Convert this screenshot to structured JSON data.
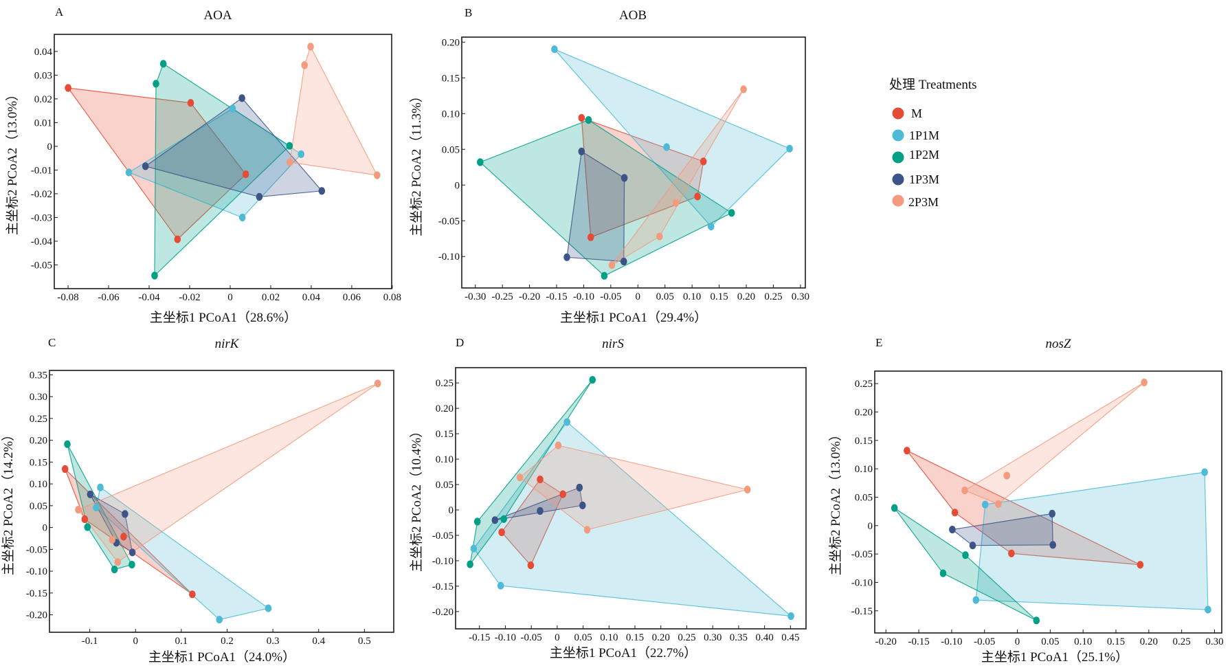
{
  "legend": {
    "title": "处理 Treatments",
    "items": [
      {
        "key": "M",
        "label": "M",
        "color": "#E64B35"
      },
      {
        "key": "1P1M",
        "label": "1P1M",
        "color": "#4DBBD5"
      },
      {
        "key": "1P2M",
        "label": "1P2M",
        "color": "#00A087"
      },
      {
        "key": "1P3M",
        "label": "1P3M",
        "color": "#3C5488"
      },
      {
        "key": "2P3M",
        "label": "2P3M",
        "color": "#F39B7F"
      }
    ]
  },
  "chart_data": [
    {
      "panel": "A",
      "type": "scatter",
      "title": "AOA",
      "title_italic": false,
      "xlabel": "主坐标1 PCoA1（28.6%）",
      "ylabel": "主坐标2 PCoA2（13.0%）",
      "xlim": [
        -0.0868,
        0.0797
      ],
      "ylim": [
        -0.06,
        0.0472
      ],
      "xticks": [
        -0.08,
        -0.06,
        -0.04,
        -0.02,
        0,
        0.02,
        0.04,
        0.06,
        0.08
      ],
      "xticklabels": [
        "-0.08",
        "-0.06",
        "-0.04",
        "-0.02",
        "0",
        "0.02",
        "0.04",
        "0.06",
        "0.08"
      ],
      "yticks": [
        0.04,
        0.03,
        0.02,
        0.01,
        0,
        -0.01,
        -0.02,
        -0.03,
        -0.04,
        -0.05
      ],
      "yticklabels": [
        "0.04",
        "0.03",
        "0.02",
        "0.01",
        "0",
        "-0.01",
        "-0.02",
        "-0.03",
        "-0.04",
        "-0.05"
      ],
      "grid": false,
      "hulls": true,
      "series": [
        {
          "name": "M",
          "points": [
            [
              -0.08,
              0.0246
            ],
            [
              -0.0195,
              0.0183
            ],
            [
              0.0077,
              -0.0118
            ],
            [
              -0.026,
              -0.0392
            ]
          ]
        },
        {
          "name": "1P1M",
          "points": [
            [
              -0.05,
              -0.011
            ],
            [
              0.0012,
              0.0159
            ],
            [
              0.035,
              -0.0033
            ],
            [
              0.006,
              -0.03
            ]
          ]
        },
        {
          "name": "1P2M",
          "points": [
            [
              -0.033,
              0.0348
            ],
            [
              -0.0366,
              0.0264
            ],
            [
              0.0293,
              0.0002
            ],
            [
              -0.0373,
              -0.0545
            ]
          ]
        },
        {
          "name": "1P3M",
          "points": [
            [
              -0.0418,
              -0.0084
            ],
            [
              0.0058,
              0.0203
            ],
            [
              0.0452,
              -0.0188
            ],
            [
              0.0144,
              -0.0213
            ]
          ]
        },
        {
          "name": "2P3M",
          "points": [
            [
              0.0397,
              0.042
            ],
            [
              0.0367,
              0.0342
            ],
            [
              0.0294,
              -0.0067
            ],
            [
              0.0725,
              -0.0122
            ]
          ]
        }
      ]
    },
    {
      "panel": "B",
      "type": "scatter",
      "title": "AOB",
      "title_italic": false,
      "xlabel": "主坐标1 PCoA1（29.4%）",
      "ylabel": "主坐标2 PCoA2（11.3%）",
      "xlim": [
        -0.325,
        0.309
      ],
      "ylim": [
        -0.144,
        0.207
      ],
      "xticks": [
        -0.3,
        -0.25,
        -0.2,
        -0.15,
        -0.1,
        -0.05,
        0,
        0.05,
        0.1,
        0.15,
        0.2,
        0.25,
        0.3
      ],
      "xticklabels": [
        "-0.30",
        "-0.25",
        "-0.20",
        "-0.15",
        "-0.10",
        "-0.05",
        "0",
        "0.05",
        "0.10",
        "0.15",
        "0.20",
        "0.25",
        "0.30"
      ],
      "yticks": [
        0.2,
        0.15,
        0.1,
        0.05,
        0,
        -0.05,
        -0.1
      ],
      "yticklabels": [
        "0.20",
        "0.15",
        "0.10",
        "0.05",
        "0",
        "-0.05",
        "-0.10"
      ],
      "grid": false,
      "hulls": true,
      "series": [
        {
          "name": "M",
          "points": [
            [
              -0.104,
              0.094
            ],
            [
              0.121,
              0.033
            ],
            [
              0.11,
              -0.016
            ],
            [
              -0.087,
              -0.073
            ]
          ]
        },
        {
          "name": "1P1M",
          "points": [
            [
              -0.154,
              0.19
            ],
            [
              0.053,
              0.053
            ],
            [
              0.28,
              0.051
            ],
            [
              0.135,
              -0.058
            ]
          ]
        },
        {
          "name": "1P2M",
          "points": [
            [
              -0.291,
              0.032
            ],
            [
              -0.091,
              0.091
            ],
            [
              0.173,
              -0.039
            ],
            [
              -0.062,
              -0.127
            ]
          ]
        },
        {
          "name": "1P3M",
          "points": [
            [
              -0.104,
              0.047
            ],
            [
              -0.025,
              0.01
            ],
            [
              -0.026,
              -0.107
            ],
            [
              -0.131,
              -0.101
            ]
          ]
        },
        {
          "name": "2P3M",
          "points": [
            [
              0.195,
              0.134
            ],
            [
              0.07,
              -0.025
            ],
            [
              0.04,
              -0.072
            ],
            [
              -0.048,
              -0.112
            ]
          ]
        }
      ]
    },
    {
      "panel": "C",
      "type": "scatter",
      "title": "nirK",
      "title_italic": true,
      "xlabel": "主坐标1 PCoA1（24.0%）",
      "ylabel": "主坐标2 PCoA2（14.2%）",
      "xlim": [
        -0.188,
        0.564
      ],
      "ylim": [
        -0.24,
        0.36
      ],
      "xticks": [
        -0.1,
        0,
        0.1,
        0.2,
        0.3,
        0.4,
        0.5
      ],
      "xticklabels": [
        "-0.1",
        "0",
        "0.1",
        "0.2",
        "0.3",
        "0.4",
        "0.5"
      ],
      "yticks": [
        0.35,
        0.3,
        0.25,
        0.2,
        0.15,
        0.1,
        0.05,
        0,
        -0.05,
        -0.1,
        -0.15,
        -0.2
      ],
      "yticklabels": [
        "0.35",
        "0.30",
        "0.25",
        "0.20",
        "0.15",
        "0.10",
        "0.05",
        "0",
        "-0.05",
        "-0.10",
        "-0.15",
        "-0.20"
      ],
      "grid": false,
      "hulls": true,
      "series": [
        {
          "name": "M",
          "points": [
            [
              -0.154,
              0.134
            ],
            [
              -0.111,
              0.019
            ],
            [
              -0.026,
              -0.021
            ],
            [
              0.124,
              -0.153
            ]
          ]
        },
        {
          "name": "1P1M",
          "points": [
            [
              -0.077,
              0.092
            ],
            [
              -0.086,
              0.046
            ],
            [
              0.183,
              -0.211
            ],
            [
              0.29,
              -0.185
            ]
          ]
        },
        {
          "name": "1P2M",
          "points": [
            [
              -0.149,
              0.191
            ],
            [
              -0.105,
              0.001
            ],
            [
              -0.046,
              -0.096
            ],
            [
              -0.008,
              -0.085
            ]
          ]
        },
        {
          "name": "1P3M",
          "points": [
            [
              -0.099,
              0.076
            ],
            [
              -0.023,
              0.031
            ],
            [
              -0.042,
              -0.035
            ],
            [
              -0.007,
              -0.057
            ]
          ]
        },
        {
          "name": "2P3M",
          "points": [
            [
              0.529,
              0.33
            ],
            [
              -0.125,
              0.041
            ],
            [
              -0.051,
              -0.028
            ],
            [
              -0.039,
              -0.079
            ]
          ]
        }
      ]
    },
    {
      "panel": "D",
      "type": "scatter",
      "title": "nirS",
      "title_italic": true,
      "xlabel": "主坐标1 PCoA1（22.7%）",
      "ylabel": "主坐标2 PCoA2（10.4%）",
      "xlim": [
        -0.196,
        0.48
      ],
      "ylim": [
        -0.234,
        0.28
      ],
      "xticks": [
        -0.15,
        -0.1,
        -0.05,
        0,
        0.05,
        0.1,
        0.15,
        0.2,
        0.25,
        0.3,
        0.35,
        0.4,
        0.45
      ],
      "xticklabels": [
        "-0.15",
        "-0.10",
        "-0.05",
        "0",
        "0.05",
        "0.10",
        "0.15",
        "0.20",
        "0.25",
        "0.30",
        "0.35",
        "0.40",
        "0.45"
      ],
      "yticks": [
        0.25,
        0.2,
        0.15,
        0.1,
        0.05,
        0,
        -0.05,
        -0.1,
        -0.15,
        -0.2
      ],
      "yticklabels": [
        "0.25",
        "0.20",
        "0.15",
        "0.10",
        "0.05",
        "0",
        "-0.05",
        "-0.10",
        "-0.15",
        "-0.20"
      ],
      "grid": false,
      "hulls": true,
      "series": [
        {
          "name": "M",
          "points": [
            [
              -0.033,
              0.06
            ],
            [
              0.011,
              0.031
            ],
            [
              -0.051,
              -0.109
            ],
            [
              -0.107,
              -0.044
            ]
          ]
        },
        {
          "name": "1P1M",
          "points": [
            [
              0.019,
              0.173
            ],
            [
              0.451,
              -0.209
            ],
            [
              -0.109,
              -0.149
            ],
            [
              -0.161,
              -0.076
            ]
          ]
        },
        {
          "name": "1P2M",
          "points": [
            [
              0.068,
              0.256
            ],
            [
              -0.103,
              -0.018
            ],
            [
              -0.154,
              -0.023
            ],
            [
              -0.168,
              -0.107
            ]
          ]
        },
        {
          "name": "1P3M",
          "points": [
            [
              -0.12,
              -0.02
            ],
            [
              -0.033,
              -0.002
            ],
            [
              0.043,
              0.044
            ],
            [
              0.049,
              0.009
            ]
          ]
        },
        {
          "name": "2P3M",
          "points": [
            [
              0.002,
              0.127
            ],
            [
              -0.072,
              0.064
            ],
            [
              0.367,
              0.04
            ],
            [
              0.058,
              -0.039
            ]
          ]
        }
      ]
    },
    {
      "panel": "E",
      "type": "scatter",
      "title": "nosZ",
      "title_italic": true,
      "xlabel": "主坐标1 PCoA1（25.1%）",
      "ylabel": "主坐标2 PCoA2（13.0%）",
      "xlim": [
        -0.217,
        0.311
      ],
      "ylim": [
        -0.189,
        0.272
      ],
      "xticks": [
        -0.2,
        -0.15,
        -0.1,
        -0.05,
        0,
        0.05,
        0.1,
        0.15,
        0.2,
        0.25,
        0.3
      ],
      "xticklabels": [
        "-0.20",
        "-0.15",
        "-0.10",
        "-0.05",
        "0",
        "0.05",
        "0.10",
        "0.15",
        "0.20",
        "0.25",
        "0.30"
      ],
      "yticks": [
        0.25,
        0.2,
        0.15,
        0.1,
        0.05,
        0,
        -0.05,
        -0.1,
        -0.15
      ],
      "yticklabels": [
        "0.25",
        "0.20",
        "0.15",
        "0.10",
        "0.05",
        "0",
        "-0.05",
        "-0.10",
        "-0.15"
      ],
      "grid": false,
      "hulls": true,
      "series": [
        {
          "name": "M",
          "points": [
            [
              -0.168,
              0.132
            ],
            [
              -0.095,
              0.023
            ],
            [
              -0.009,
              -0.049
            ],
            [
              0.187,
              -0.069
            ]
          ]
        },
        {
          "name": "1P1M",
          "points": [
            [
              -0.049,
              0.037
            ],
            [
              0.285,
              0.094
            ],
            [
              0.29,
              -0.148
            ],
            [
              -0.063,
              -0.131
            ]
          ]
        },
        {
          "name": "1P2M",
          "points": [
            [
              -0.187,
              0.031
            ],
            [
              -0.079,
              -0.052
            ],
            [
              -0.113,
              -0.084
            ],
            [
              0.029,
              -0.167
            ]
          ]
        },
        {
          "name": "1P3M",
          "points": [
            [
              -0.099,
              -0.007
            ],
            [
              0.053,
              0.021
            ],
            [
              0.054,
              -0.034
            ],
            [
              -0.068,
              -0.035
            ]
          ]
        },
        {
          "name": "2P3M",
          "points": [
            [
              0.193,
              0.252
            ],
            [
              -0.016,
              0.088
            ],
            [
              -0.08,
              0.062
            ],
            [
              -0.029,
              0.038
            ]
          ]
        }
      ]
    }
  ]
}
